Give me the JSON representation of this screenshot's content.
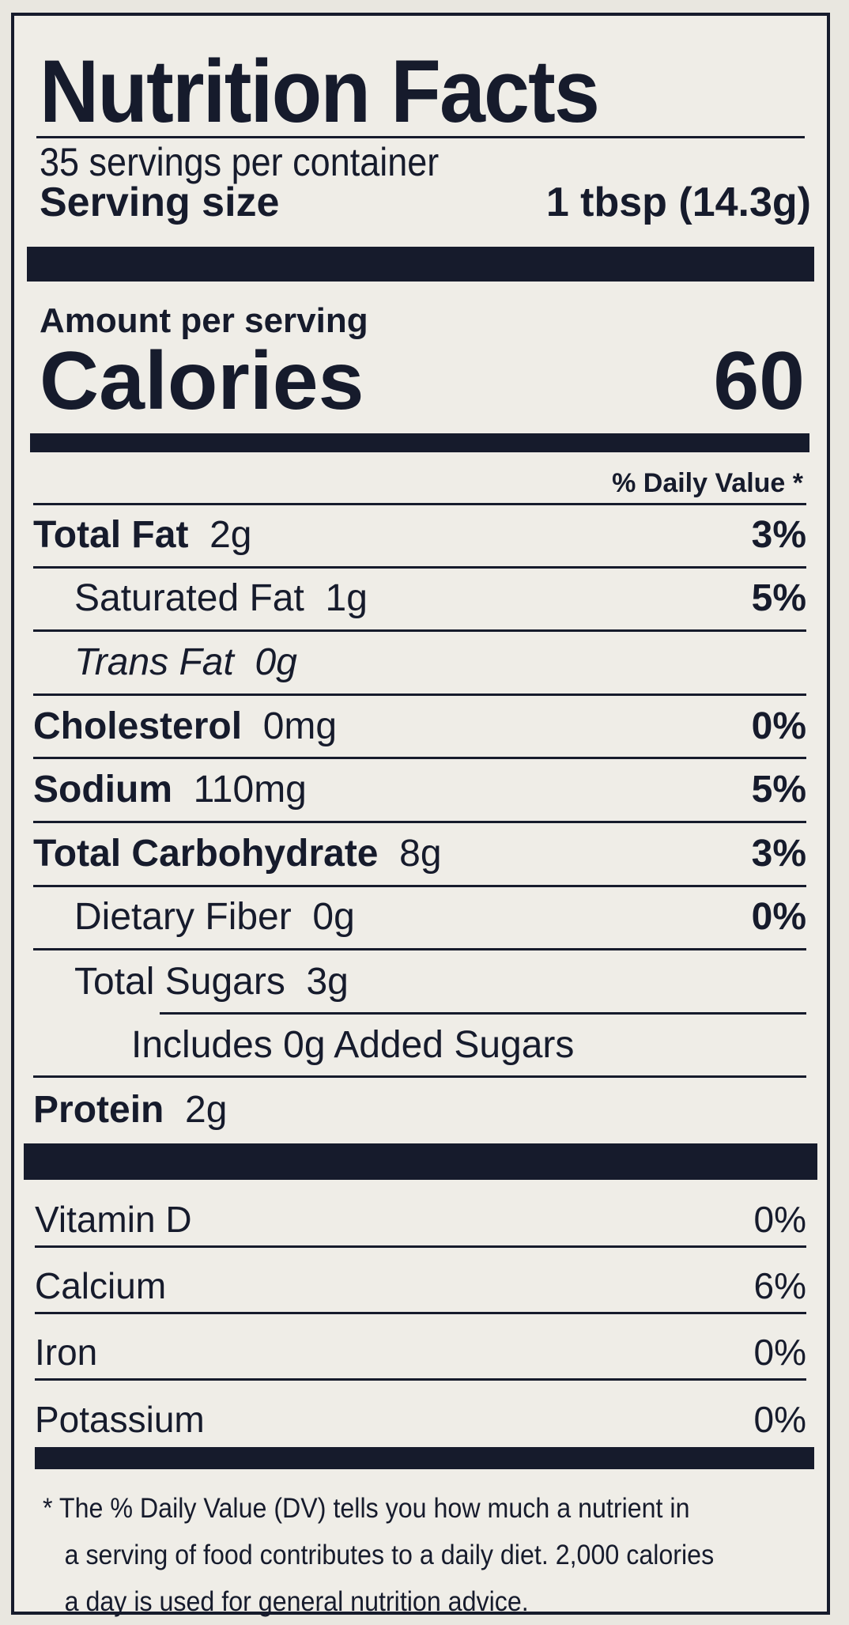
{
  "title": "Nutrition Facts",
  "servings": "35 servings per container",
  "serving_size": {
    "label": "Serving size",
    "value": "1 tbsp (14.3g)"
  },
  "amount_per_serving": "Amount per serving",
  "calories": {
    "label": "Calories",
    "value": "60"
  },
  "daily_value_header": "% Daily Value *",
  "nutrients": [
    {
      "name": "Total Fat",
      "amount": "2g",
      "dv": "3%",
      "bold": true,
      "level": 0
    },
    {
      "name": "Saturated Fat",
      "amount": "1g",
      "dv": "5%",
      "bold": false,
      "level": 1
    },
    {
      "name": "Trans Fat",
      "amount": "0g",
      "dv": "",
      "bold": false,
      "italic": true,
      "level": 1
    },
    {
      "name": "Cholesterol",
      "amount": "0mg",
      "dv": "0%",
      "bold": true,
      "level": 0
    },
    {
      "name": "Sodium",
      "amount": "110mg",
      "dv": "5%",
      "bold": true,
      "level": 0
    },
    {
      "name": "Total Carbohydrate",
      "amount": "8g",
      "dv": "3%",
      "bold": true,
      "level": 0
    },
    {
      "name": "Dietary Fiber",
      "amount": "0g",
      "dv": "0%",
      "bold": false,
      "level": 1
    },
    {
      "name": "Total Sugars",
      "amount": "3g",
      "dv": "",
      "bold": false,
      "level": 1
    },
    {
      "name": "Includes 0g Added Sugars",
      "amount": "",
      "dv": "",
      "bold": false,
      "level": 2
    },
    {
      "name": "Protein",
      "amount": "2g",
      "dv": "",
      "bold": true,
      "level": 0
    }
  ],
  "vitamins": [
    {
      "name": "Vitamin D",
      "dv": "0%"
    },
    {
      "name": "Calcium",
      "dv": "6%"
    },
    {
      "name": "Iron",
      "dv": "0%"
    },
    {
      "name": "Potassium",
      "dv": "0%"
    }
  ],
  "footnote": {
    "line1": "* The % Daily Value (DV) tells you how much a nutrient in",
    "line2": "a serving of food contributes to a daily diet. 2,000 calories",
    "line3": "a day is used for general nutrition advice."
  },
  "colors": {
    "ink": "#161b2c",
    "paper": "#efede7"
  }
}
